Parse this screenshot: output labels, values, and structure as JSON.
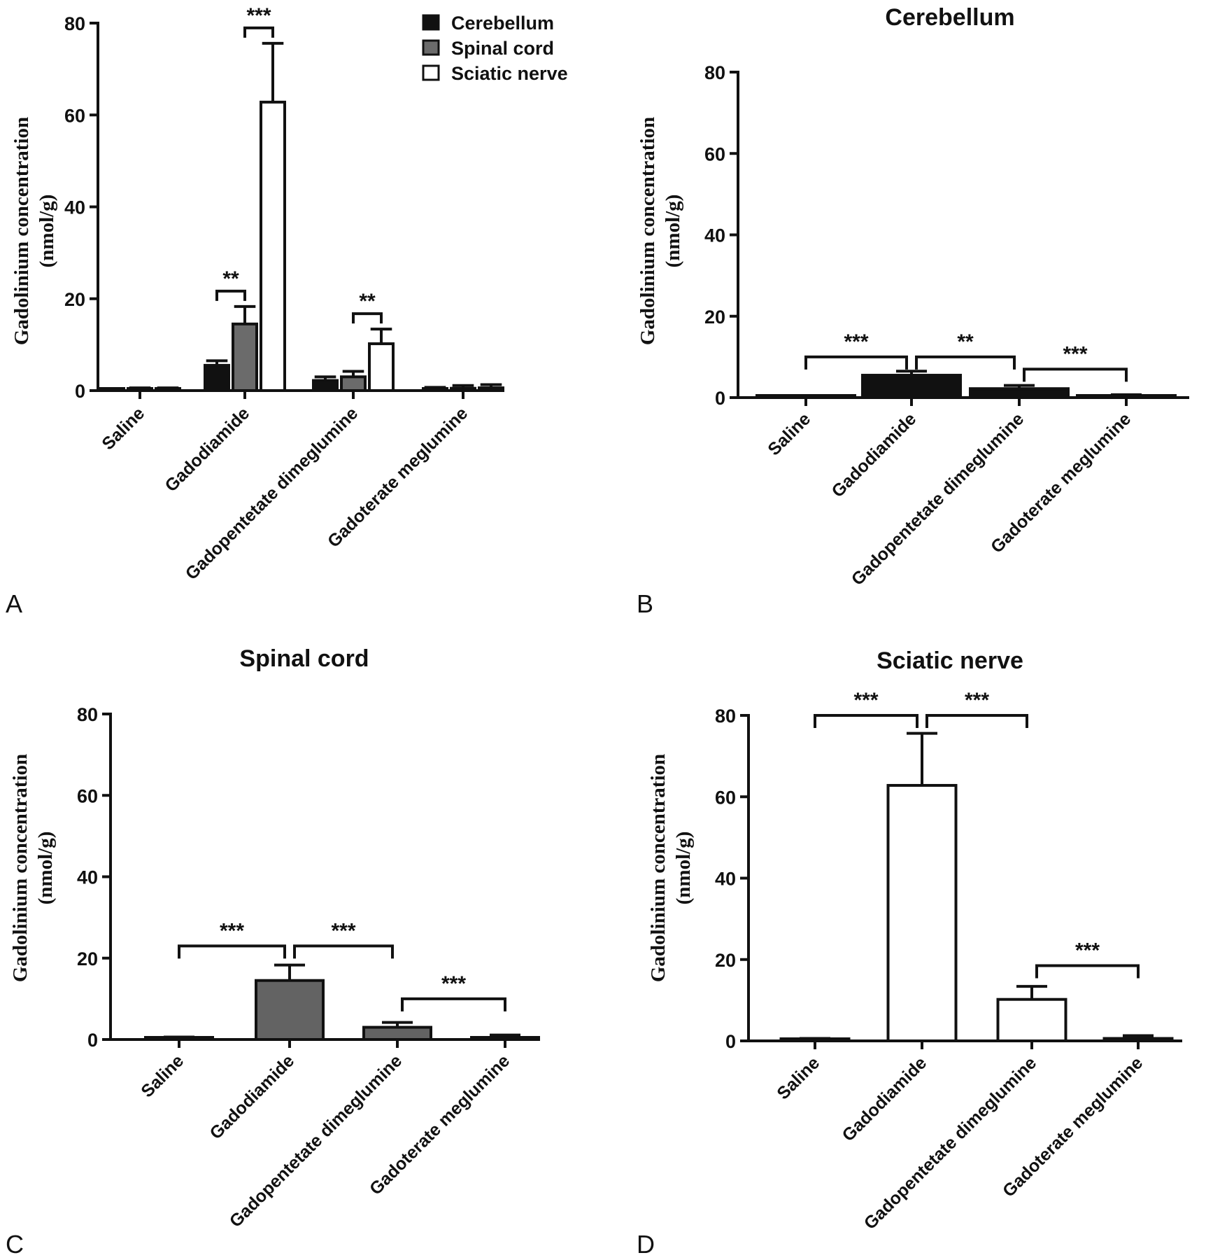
{
  "chart_data": [
    {
      "panel": "A",
      "type": "bar",
      "title": "",
      "ylabel": "Gadolinium concentration\n(nmol/g)",
      "ylim": [
        0,
        80
      ],
      "yticks": [
        0,
        20,
        40,
        60,
        80
      ],
      "categories": [
        "Saline",
        "Gadodiamide",
        "Gadopentetate dimeglumine",
        "Gadoterate meglumine"
      ],
      "legend_position": "top-right",
      "series": [
        {
          "name": "Cerebellum",
          "color": "#111111",
          "values": [
            0.2,
            5.5,
            2.2,
            0.3
          ],
          "errors": [
            0.1,
            1.0,
            0.8,
            0.4
          ]
        },
        {
          "name": "Spinal cord",
          "color": "#6b6b6b",
          "values": [
            0.3,
            14.5,
            3.0,
            0.5
          ],
          "errors": [
            0.3,
            3.8,
            1.2,
            0.6
          ]
        },
        {
          "name": "Sciatic nerve",
          "color": "#ffffff",
          "values": [
            0.3,
            62.8,
            10.2,
            0.6
          ],
          "errors": [
            0.3,
            12.8,
            3.2,
            0.7
          ]
        }
      ],
      "significance": [
        {
          "category": 1,
          "from_series": 0,
          "to_series": 1,
          "label": "**"
        },
        {
          "category": 1,
          "from_series": 1,
          "to_series": 2,
          "label": "***"
        },
        {
          "category": 2,
          "from_series": 1,
          "to_series": 2,
          "label": "**"
        }
      ]
    },
    {
      "panel": "B",
      "type": "bar",
      "title": "Cerebellum",
      "ylabel": "Gadolinium concentration\n(nmol/g)",
      "ylim": [
        0,
        80
      ],
      "yticks": [
        0,
        20,
        40,
        60,
        80
      ],
      "categories": [
        "Saline",
        "Gadodiamide",
        "Gadopentetate dimeglumine",
        "Gadoterate meglumine"
      ],
      "color": "#111111",
      "values": [
        0.2,
        5.5,
        2.2,
        0.3
      ],
      "errors": [
        0.1,
        1.0,
        0.8,
        0.4
      ],
      "significance": [
        {
          "from": 0,
          "to": 1,
          "label": "***",
          "level": 10
        },
        {
          "from": 1,
          "to": 2,
          "label": "**",
          "level": 10
        },
        {
          "from": 2,
          "to": 3,
          "label": "***",
          "level": 7
        }
      ]
    },
    {
      "panel": "C",
      "type": "bar",
      "title": "Spinal cord",
      "ylabel": "Gadolinium concentration\n(nmol/g)",
      "ylim": [
        0,
        80
      ],
      "yticks": [
        0,
        20,
        40,
        60,
        80
      ],
      "categories": [
        "Saline",
        "Gadodiamide",
        "Gadopentetate dimeglumine",
        "Gadoterate meglumine"
      ],
      "color": "#636363",
      "values": [
        0.3,
        14.5,
        3.0,
        0.5
      ],
      "errors": [
        0.3,
        3.8,
        1.2,
        0.6
      ],
      "significance": [
        {
          "from": 0,
          "to": 1,
          "label": "***",
          "level": 23
        },
        {
          "from": 1,
          "to": 2,
          "label": "***",
          "level": 23
        },
        {
          "from": 2,
          "to": 3,
          "label": "***",
          "level": 10
        }
      ]
    },
    {
      "panel": "D",
      "type": "bar",
      "title": "Sciatic nerve",
      "ylabel": "Gadolinium concentration\n(nmol/g)",
      "ylim": [
        0,
        80
      ],
      "yticks": [
        0,
        20,
        40,
        60,
        80
      ],
      "categories": [
        "Saline",
        "Gadodiamide",
        "Gadopentetate dimeglumine",
        "Gadoterate meglumine"
      ],
      "color": "#ffffff",
      "values": [
        0.3,
        62.8,
        10.2,
        0.6
      ],
      "errors": [
        0.3,
        12.8,
        3.2,
        0.7
      ],
      "significance": [
        {
          "from": 0,
          "to": 1,
          "label": "***",
          "level": 80
        },
        {
          "from": 1,
          "to": 2,
          "label": "***",
          "level": 80
        },
        {
          "from": 2,
          "to": 3,
          "label": "***",
          "level": 18.5
        }
      ]
    }
  ]
}
